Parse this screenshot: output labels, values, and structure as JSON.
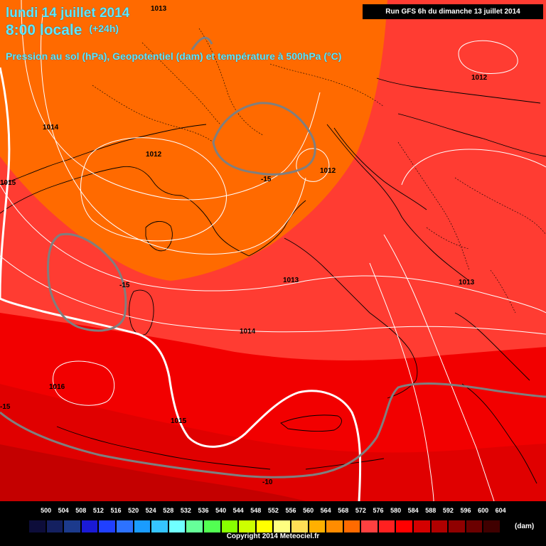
{
  "header": {
    "date_line": "lundi 14 juillet 2014",
    "time_line": "8:00 locale",
    "lead_time": "(+24h)",
    "subtitle": "Pression au sol (hPa), Geopotentiel (dam) et température à 500hPa (°C)",
    "run_info": "Run GFS 6h du dimanche 13 juillet 2014"
  },
  "map": {
    "isobar_labels": [
      {
        "text": "1013"
      },
      {
        "text": "1014"
      },
      {
        "text": "1015"
      },
      {
        "text": "1012"
      },
      {
        "text": "1012"
      },
      {
        "text": "1012"
      },
      {
        "text": "1013"
      },
      {
        "text": "1013"
      },
      {
        "text": "1014"
      },
      {
        "text": "1016"
      },
      {
        "text": "1015"
      }
    ],
    "temperature_labels": [
      {
        "text": "-15"
      },
      {
        "text": "-15"
      },
      {
        "text": "-15"
      },
      {
        "text": "-10"
      }
    ],
    "colors": {
      "orange_zone": "#ff6a00",
      "red_orange_zone": "#ff3c32",
      "red_zone": "#f20000",
      "dark_red_zone": "#c40000",
      "isobar": "#ffffff",
      "isotherm": "#7f7f7f",
      "coastline": "#000000"
    }
  },
  "legend": {
    "labels": [
      "500",
      "504",
      "508",
      "512",
      "516",
      "520",
      "524",
      "528",
      "532",
      "536",
      "540",
      "544",
      "548",
      "552",
      "556",
      "560",
      "564",
      "568",
      "572",
      "576",
      "580",
      "584",
      "588",
      "592",
      "596",
      "600",
      "604"
    ],
    "colors": [
      "#0d0d3a",
      "#142060",
      "#1c3a8c",
      "#1a1ad6",
      "#2040ff",
      "#2d72ff",
      "#1a9cff",
      "#35c5ff",
      "#70ffff",
      "#66ff99",
      "#52ff52",
      "#88ff00",
      "#ccff00",
      "#ffff00",
      "#ffff80",
      "#ffdd55",
      "#ffb000",
      "#ff8c00",
      "#ff6a00",
      "#ff4040",
      "#ff2020",
      "#ff0000",
      "#d40000",
      "#b00000",
      "#900000",
      "#6b0000",
      "#400000",
      "#000000"
    ],
    "unit": "(dam)"
  },
  "footer": {
    "copyright": "Copyright 2014 Meteociel.fr"
  }
}
